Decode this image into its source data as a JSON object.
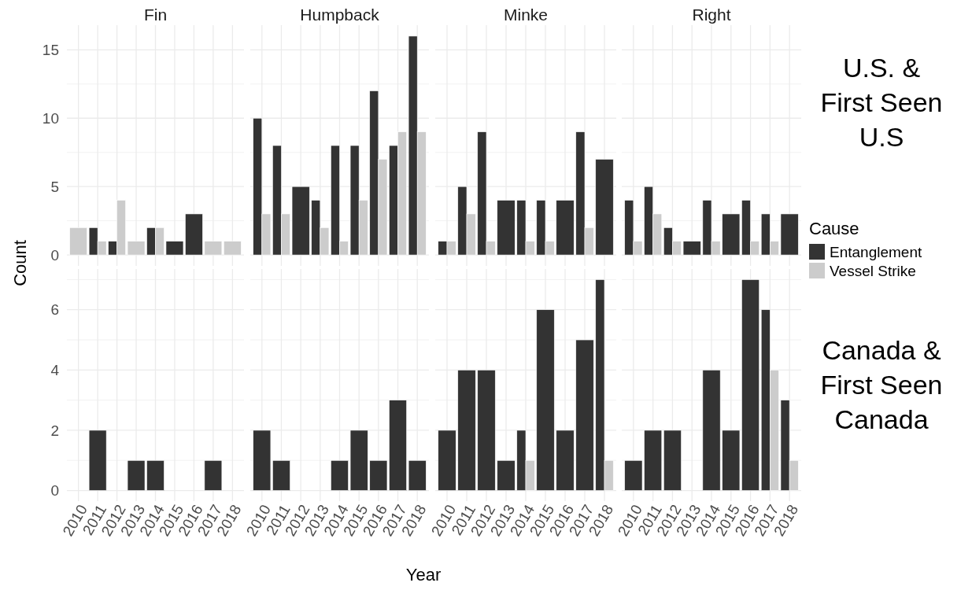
{
  "chart_data": [
    {
      "type": "bar",
      "title": "Fin",
      "ylabel": "Count",
      "categories": [
        "2010",
        "2011",
        "2012",
        "2013",
        "2014",
        "2015",
        "2016",
        "2017",
        "2018"
      ],
      "ylim": [
        -0.8,
        16.8
      ],
      "yticks": [
        0,
        {
          "value": 2.5,
          "label": null
        },
        5,
        {
          "value": 7.5,
          "label": null
        },
        10,
        {
          "value": 12.5,
          "label": null
        },
        15
      ],
      "grid": true,
      "tick_labels": "y",
      "series": [
        {
          "color": "#333333",
          "values": [
            null,
            2,
            1,
            null,
            2,
            1,
            3,
            null,
            null
          ]
        },
        {
          "color": "#cccccc",
          "values": [
            2,
            1,
            4,
            1,
            2,
            null,
            null,
            1,
            1
          ]
        }
      ]
    },
    {
      "type": "bar",
      "title": "Humpback",
      "categories": [
        "2010",
        "2011",
        "2012",
        "2013",
        "2014",
        "2015",
        "2016",
        "2017",
        "2018"
      ],
      "ylim": [
        -0.8,
        16.8
      ],
      "yticks": [
        0,
        {
          "value": 2.5,
          "label": null
        },
        5,
        {
          "value": 7.5,
          "label": null
        },
        10,
        {
          "value": 12.5,
          "label": null
        },
        15
      ],
      "grid": true,
      "tick_labels": false,
      "series": [
        {
          "color": "#333333",
          "values": [
            10,
            8,
            5,
            4,
            8,
            8,
            12,
            8,
            16
          ]
        },
        {
          "color": "#cccccc",
          "values": [
            3,
            3,
            null,
            2,
            1,
            4,
            7,
            9,
            9
          ]
        }
      ]
    },
    {
      "type": "bar",
      "title": "Minke",
      "categories": [
        "2010",
        "2011",
        "2012",
        "2013",
        "2014",
        "2015",
        "2016",
        "2017",
        "2018"
      ],
      "ylim": [
        -0.8,
        16.8
      ],
      "yticks": [
        0,
        {
          "value": 2.5,
          "label": null
        },
        5,
        {
          "value": 7.5,
          "label": null
        },
        10,
        {
          "value": 12.5,
          "label": null
        },
        15
      ],
      "grid": true,
      "tick_labels": false,
      "series": [
        {
          "color": "#333333",
          "values": [
            1,
            5,
            9,
            4,
            4,
            4,
            4,
            9,
            7
          ]
        },
        {
          "color": "#cccccc",
          "values": [
            1,
            3,
            1,
            null,
            1,
            1,
            null,
            2,
            null
          ]
        }
      ]
    },
    {
      "type": "bar",
      "title": "Right",
      "annotations": [
        "U.S. & First Seen U.S"
      ],
      "legend": "right",
      "legend_title": "Cause",
      "categories": [
        "2010",
        "2011",
        "2012",
        "2013",
        "2014",
        "2015",
        "2016",
        "2017",
        "2018"
      ],
      "ylim": [
        -0.8,
        16.8
      ],
      "yticks": [
        0,
        {
          "value": 2.5,
          "label": null
        },
        5,
        {
          "value": 7.5,
          "label": null
        },
        10,
        {
          "value": 12.5,
          "label": null
        },
        15
      ],
      "grid": true,
      "tick_labels": false,
      "series": [
        {
          "name": "Entanglement",
          "color": "#333333",
          "values": [
            4,
            5,
            2,
            1,
            4,
            3,
            4,
            3,
            3
          ]
        },
        {
          "name": "Vessel Strike",
          "color": "#cccccc",
          "values": [
            1,
            3,
            1,
            null,
            1,
            null,
            1,
            1,
            null
          ]
        }
      ]
    },
    {
      "type": "bar",
      "categories": [
        "2010",
        "2011",
        "2012",
        "2013",
        "2014",
        "2015",
        "2016",
        "2017",
        "2018"
      ],
      "ylim": [
        -0.35,
        7.35
      ],
      "yticks": [
        0,
        {
          "value": 1,
          "label": null
        },
        2,
        {
          "value": 3,
          "label": null
        },
        4,
        {
          "value": 5,
          "label": null
        },
        6,
        {
          "value": 7,
          "label": null
        }
      ],
      "grid": true,
      "series": [
        {
          "color": "#333333",
          "values": [
            null,
            2,
            null,
            1,
            1,
            null,
            null,
            1,
            null
          ]
        }
      ]
    },
    {
      "type": "bar",
      "xlabel": "Year",
      "categories": [
        "2010",
        "2011",
        "2012",
        "2013",
        "2014",
        "2015",
        "2016",
        "2017",
        "2018"
      ],
      "ylim": [
        -0.35,
        7.35
      ],
      "yticks": [
        0,
        {
          "value": 1,
          "label": null
        },
        2,
        {
          "value": 3,
          "label": null
        },
        4,
        {
          "value": 5,
          "label": null
        },
        6,
        {
          "value": 7,
          "label": null
        }
      ],
      "grid": true,
      "tick_labels": "x",
      "series": [
        {
          "color": "#333333",
          "values": [
            2,
            1,
            null,
            null,
            1,
            2,
            1,
            3,
            1
          ]
        }
      ]
    },
    {
      "type": "bar",
      "categories": [
        "2010",
        "2011",
        "2012",
        "2013",
        "2014",
        "2015",
        "2016",
        "2017",
        "2018"
      ],
      "ylim": [
        -0.35,
        7.35
      ],
      "yticks": [
        0,
        {
          "value": 1,
          "label": null
        },
        2,
        {
          "value": 3,
          "label": null
        },
        4,
        {
          "value": 5,
          "label": null
        },
        6,
        {
          "value": 7,
          "label": null
        }
      ],
      "grid": true,
      "tick_labels": "x",
      "series": [
        {
          "color": "#333333",
          "values": [
            2,
            4,
            4,
            1,
            2,
            6,
            2,
            5,
            7
          ]
        },
        {
          "color": "#cccccc",
          "values": [
            null,
            null,
            null,
            null,
            1,
            null,
            null,
            null,
            1
          ]
        }
      ]
    },
    {
      "type": "bar",
      "annotations": [
        "Canada & First Seen Canada"
      ],
      "categories": [
        "2010",
        "2011",
        "2012",
        "2013",
        "2014",
        "2015",
        "2016",
        "2017",
        "2018"
      ],
      "ylim": [
        -0.35,
        7.35
      ],
      "yticks": [
        0,
        {
          "value": 1,
          "label": null
        },
        2,
        {
          "value": 3,
          "label": null
        },
        4,
        {
          "value": 5,
          "label": null
        },
        6,
        {
          "value": 7,
          "label": null
        }
      ],
      "grid": true,
      "tick_labels": "x",
      "series": [
        {
          "color": "#333333",
          "values": [
            1,
            2,
            2,
            null,
            4,
            2,
            7,
            6,
            3
          ]
        },
        {
          "color": "#cccccc",
          "values": [
            null,
            null,
            null,
            null,
            null,
            null,
            null,
            4,
            1
          ]
        }
      ]
    }
  ]
}
